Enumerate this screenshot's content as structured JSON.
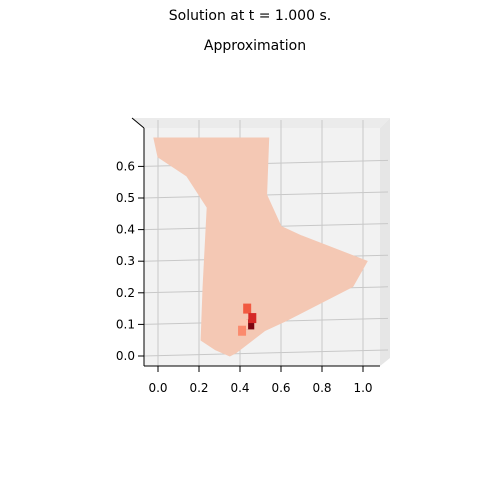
{
  "figure": {
    "suptitle": "Solution at t = 1.000 s.",
    "title": "Approximation"
  },
  "chart_data": {
    "type": "surface",
    "title": "Approximation",
    "suptitle": "Solution at t = 1.000 s.",
    "view": "top-down 3D surface (x–y plane)",
    "xlabel": "",
    "ylabel": "",
    "xlim": [
      -0.07,
      1.07
    ],
    "ylim": [
      -0.04,
      0.7
    ],
    "x_ticks": [
      "0.0",
      "0.2",
      "0.4",
      "0.6",
      "0.8",
      "1.0"
    ],
    "y_ticks": [
      "0.0",
      "0.1",
      "0.2",
      "0.3",
      "0.4",
      "0.5",
      "0.6"
    ],
    "x_tick_values": [
      0.0,
      0.2,
      0.4,
      0.6,
      0.8,
      1.0
    ],
    "y_tick_values": [
      0.0,
      0.1,
      0.2,
      0.3,
      0.4,
      0.5,
      0.6
    ],
    "grid": true,
    "colormap": "Reds",
    "surface_color": "#f4c8b4",
    "pane_color": "#f2f2f2",
    "region_outline": [
      [
        -0.02,
        0.69
      ],
      [
        0.54,
        0.69
      ],
      [
        0.53,
        0.51
      ],
      [
        0.6,
        0.41
      ],
      [
        0.7,
        0.38
      ],
      [
        1.02,
        0.3
      ],
      [
        0.95,
        0.22
      ],
      [
        0.8,
        0.17
      ],
      [
        0.68,
        0.13
      ],
      [
        0.62,
        0.11
      ],
      [
        0.52,
        0.08
      ],
      [
        0.38,
        0.01
      ],
      [
        0.35,
        0.0
      ],
      [
        0.28,
        0.02
      ],
      [
        0.21,
        0.05
      ],
      [
        0.22,
        0.22
      ],
      [
        0.24,
        0.47
      ],
      [
        0.14,
        0.57
      ],
      [
        0.0,
        0.63
      ]
    ],
    "hotspot": {
      "x": 0.42,
      "y": 0.11,
      "cells": [
        {
          "x": 0.435,
          "y": 0.15,
          "value": 0.55
        },
        {
          "x": 0.45,
          "y": 0.1,
          "value": 0.95
        },
        {
          "x": 0.42,
          "y": 0.1,
          "value": 0.2
        },
        {
          "x": 0.41,
          "y": 0.08,
          "value": 0.4
        },
        {
          "x": 0.46,
          "y": 0.12,
          "value": 0.7
        }
      ]
    }
  }
}
